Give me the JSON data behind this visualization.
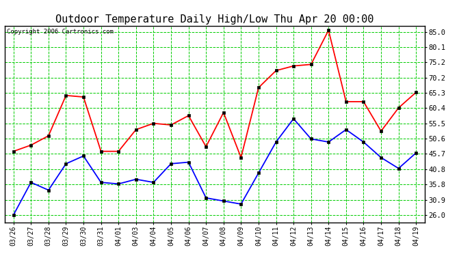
{
  "title": "Outdoor Temperature Daily High/Low Thu Apr 20 00:00",
  "copyright": "Copyright 2006 Cartronics.com",
  "labels": [
    "03/26",
    "03/27",
    "03/28",
    "03/29",
    "03/30",
    "03/31",
    "04/01",
    "04/03",
    "04/04",
    "04/05",
    "04/06",
    "04/07",
    "04/08",
    "04/09",
    "04/10",
    "04/11",
    "04/12",
    "04/13",
    "04/14",
    "04/15",
    "04/16",
    "04/17",
    "04/18",
    "04/19"
  ],
  "high_temps": [
    46.5,
    48.5,
    51.5,
    64.5,
    64.0,
    46.5,
    46.5,
    53.5,
    55.5,
    55.0,
    58.0,
    48.0,
    59.0,
    44.5,
    67.0,
    72.5,
    74.0,
    74.5,
    85.5,
    62.5,
    62.5,
    53.0,
    60.5,
    65.5
  ],
  "low_temps": [
    26.0,
    36.5,
    34.0,
    42.5,
    45.0,
    36.5,
    36.0,
    37.5,
    36.5,
    42.5,
    43.0,
    31.5,
    30.5,
    29.5,
    39.5,
    49.5,
    57.0,
    50.5,
    49.5,
    53.5,
    49.5,
    44.5,
    41.0,
    46.0
  ],
  "high_color": "#ff0000",
  "low_color": "#0000ff",
  "bg_color": "#ffffff",
  "grid_color": "#00cc00",
  "yticks": [
    26.0,
    30.9,
    35.8,
    40.8,
    45.7,
    50.6,
    55.5,
    60.4,
    65.3,
    70.2,
    75.2,
    80.1,
    85.0
  ],
  "ylim": [
    23.5,
    87.0
  ],
  "title_fontsize": 11,
  "copyright_fontsize": 6.5,
  "tick_fontsize": 7,
  "ytick_fontsize": 7.5
}
